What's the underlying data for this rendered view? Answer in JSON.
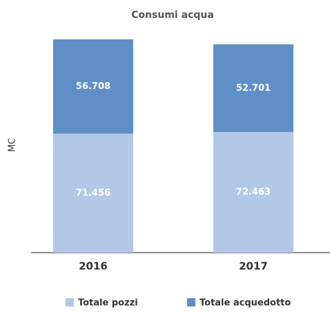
{
  "chart_data": {
    "type": "stacked_bar",
    "title": "Consumi acqua",
    "y_label": "MC",
    "categories": [
      "2016",
      "2017"
    ],
    "series": [
      {
        "name": "Totale pozzi",
        "color": "#b3c7e6",
        "values": [
          71456,
          72463
        ],
        "value_labels": [
          "71.456",
          "72.463"
        ]
      },
      {
        "name": "Totale acquedotto",
        "color": "#5f8fc6",
        "values": [
          56708,
          52701
        ],
        "value_labels": [
          "56.708",
          "52.701"
        ]
      }
    ],
    "legend": "bottom"
  }
}
